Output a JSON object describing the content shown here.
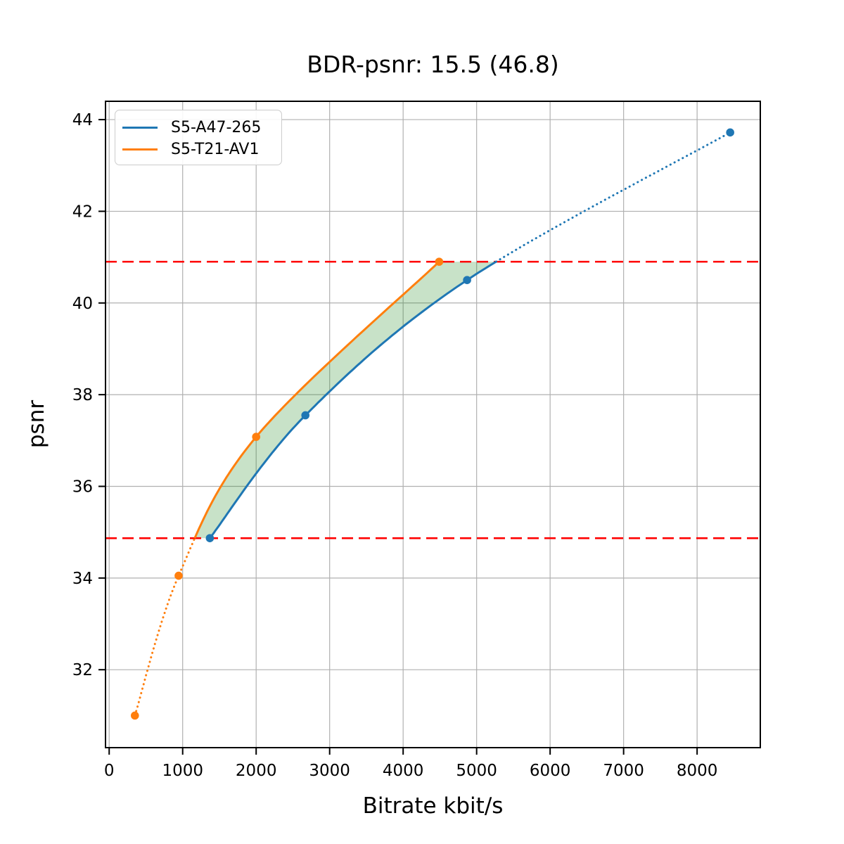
{
  "chart_data": {
    "type": "line",
    "title": "BDR-psnr: 15.5 (46.8)",
    "xlabel": "Bitrate kbit/s",
    "ylabel": "psnr",
    "xlim": [
      -50,
      8860
    ],
    "ylim": [
      30.3,
      44.4
    ],
    "xticks": [
      0,
      1000,
      2000,
      3000,
      4000,
      5000,
      6000,
      7000,
      8000
    ],
    "yticks": [
      32,
      34,
      36,
      38,
      40,
      42,
      44
    ],
    "grid": true,
    "legend_position": "upper-left",
    "series": [
      {
        "name": "S5-A47-265",
        "color": "#1f77b4",
        "points": [
          [
            1370,
            34.87
          ],
          [
            2670,
            37.55
          ],
          [
            4870,
            40.5
          ],
          [
            8450,
            43.72
          ]
        ]
      },
      {
        "name": "S5-T21-AV1",
        "color": "#ff7f0e",
        "points": [
          [
            350,
            31.0
          ],
          [
            945,
            34.05
          ],
          [
            2000,
            37.08
          ],
          [
            4490,
            40.9
          ]
        ]
      }
    ],
    "hlines": {
      "values": [
        34.87,
        40.9
      ],
      "color": "#ff0000",
      "style": "dashed"
    },
    "shade_between": {
      "lo": 34.87,
      "hi": 40.9,
      "color": "#228b22",
      "opacity": 0.25
    },
    "colors": {
      "grid": "#b0b0b0",
      "spine": "#000000",
      "background": "#ffffff"
    }
  }
}
